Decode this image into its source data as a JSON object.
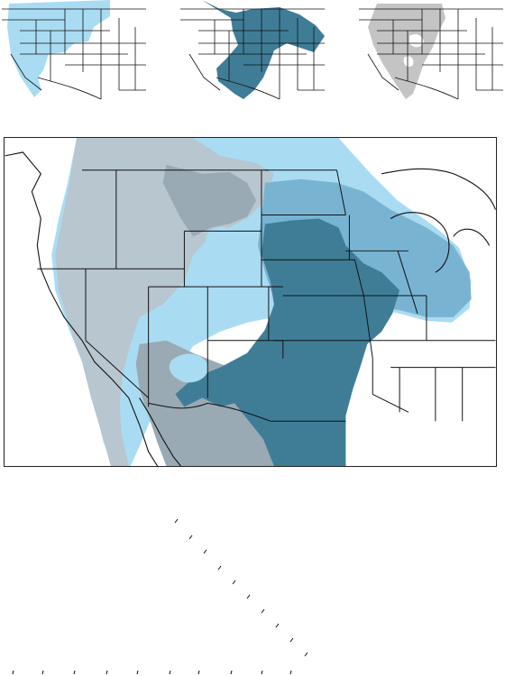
{
  "figure": {
    "panels": [
      {
        "id": "panel-light-blue",
        "fill": "#a9dcf2"
      },
      {
        "id": "panel-dark-teal",
        "fill": "#3f7d97"
      },
      {
        "id": "panel-gray",
        "fill": "#c4c4c4"
      }
    ],
    "composite": {
      "fills": {
        "light_blue": "#a9dcf2",
        "mid_blue": "#78b4d2",
        "dark_teal": "#3f7d97",
        "gray_blue": "#b8c6cf",
        "gray_mid": "#9aaab4",
        "outline": "#111111"
      }
    }
  }
}
